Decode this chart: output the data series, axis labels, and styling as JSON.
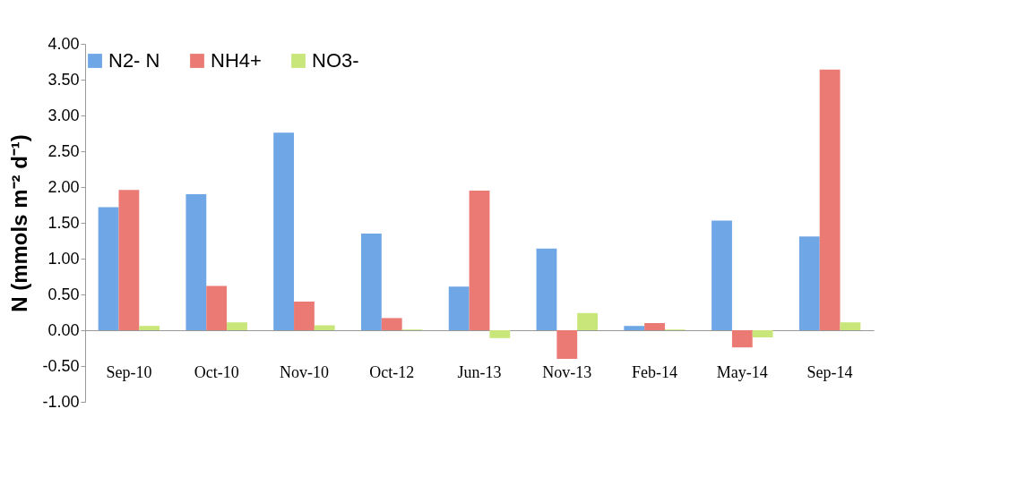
{
  "chart_data": {
    "type": "bar",
    "ylabel": "N (mmols m⁻² d⁻¹)",
    "categories": [
      "Sep-10",
      "Oct-10",
      "Nov-10",
      "Oct-12",
      "Jun-13",
      "Nov-13",
      "Feb-14",
      "May-14",
      "Sep-14"
    ],
    "series": [
      {
        "name": "N2- N",
        "color": "#6fa6e6",
        "values": [
          1.72,
          1.9,
          2.76,
          1.35,
          0.61,
          1.14,
          0.06,
          1.53,
          1.31
        ]
      },
      {
        "name": "NH4+",
        "color": "#eb7a74",
        "values": [
          1.96,
          0.62,
          0.4,
          0.17,
          1.95,
          -0.4,
          0.1,
          -0.24,
          3.64
        ]
      },
      {
        "name": "NO3-",
        "color": "#c8e67a",
        "values": [
          0.06,
          0.11,
          0.07,
          0.01,
          -0.11,
          0.24,
          0.01,
          -0.1,
          0.11
        ]
      }
    ],
    "ylim": [
      -1,
      4
    ],
    "yticks": [
      {
        "value": -1,
        "label": "-1.00"
      },
      {
        "value": -0.5,
        "label": "-0.50"
      },
      {
        "value": 0,
        "label": "0.00"
      },
      {
        "value": 0.5,
        "label": "0.50"
      },
      {
        "value": 1,
        "label": "1.00"
      },
      {
        "value": 1.5,
        "label": "1.50"
      },
      {
        "value": 2,
        "label": "2.00"
      },
      {
        "value": 2.5,
        "label": "2.50"
      },
      {
        "value": 3,
        "label": "3.00"
      },
      {
        "value": 3.5,
        "label": "3.50"
      },
      {
        "value": 4,
        "label": "4.00"
      }
    ],
    "grid": false,
    "legend": "top"
  }
}
